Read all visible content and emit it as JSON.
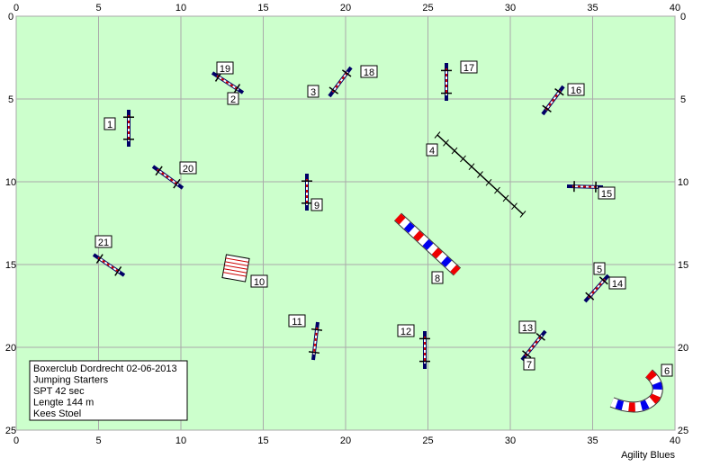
{
  "xticks": [
    0,
    5,
    10,
    15,
    20,
    25,
    30,
    35,
    40
  ],
  "yticks": [
    0,
    5,
    10,
    15,
    20,
    25
  ],
  "obstacles": [
    "1",
    "2",
    "3",
    "4",
    "5",
    "6",
    "7",
    "8",
    "9",
    "10",
    "11",
    "12",
    "13",
    "14",
    "15",
    "16",
    "17",
    "18",
    "19",
    "20",
    "21"
  ],
  "info": [
    "Boxerclub Dordrecht 02-06-2013",
    "Jumping Starters",
    "SPT 42 sec",
    "Lengte 144 m",
    "Kees Stoel"
  ],
  "credit": "Agility Blues"
}
